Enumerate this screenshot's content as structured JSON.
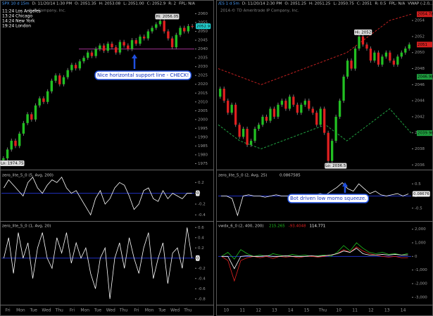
{
  "left": {
    "header": [
      "SPX 10 d 15m",
      "D: 11/20/14 1:30 PM",
      "O: 2051.35",
      "H: 2053.08",
      "L: 2051.00",
      "C: 2052.9",
      "R: 2",
      "FPL: N/A"
    ],
    "watermark": "© IP Company, Inc.",
    "clocks": [
      {
        "time": "11:24",
        "city": "Los Angeles"
      },
      {
        "time": "13:24",
        "city": "Chicago"
      },
      {
        "time": "14:24",
        "city": "New York"
      },
      {
        "time": "19:24",
        "city": "London"
      }
    ],
    "price": {
      "ylim": [
        1972,
        2063
      ],
      "yticks": [
        1975,
        1980,
        1985,
        1990,
        1995,
        2000,
        2005,
        2010,
        2015,
        2020,
        2025,
        2030,
        2035,
        2040,
        2045,
        2050,
        2055,
        2060
      ],
      "values": [
        1978,
        1983,
        1988,
        1985,
        1992,
        1998,
        2003,
        2000,
        2008,
        2012,
        2010,
        2016,
        2022,
        2025,
        2020,
        2024,
        2028,
        2031,
        2029,
        2033,
        2035,
        2038,
        2036,
        2040,
        2042,
        2039,
        2043,
        2041,
        2038,
        2044,
        2042,
        2040,
        2045,
        2043,
        2047,
        2046,
        2050,
        2052,
        2054,
        2056,
        2050,
        2046,
        2041,
        2048,
        2052,
        2050,
        2053,
        2052.9
      ],
      "last_label": "2052.9",
      "high_label": "Hi: 2056.05",
      "low_label": "Lo: 1974.75",
      "support": 2040
    },
    "annotation": "Nice horizontal support line - CHECK!",
    "osc1": {
      "title": "zero_lite_5_0 (5, Avg, 200)",
      "ylim": [
        -0.5,
        0.4
      ],
      "yticks": [
        0.2,
        0,
        -0.2,
        -0.4
      ],
      "values": [
        0.1,
        0.25,
        0.15,
        0.05,
        -0.05,
        0.2,
        0.3,
        0.1,
        0,
        0.15,
        0.25,
        0.2,
        0.3,
        0.1,
        0,
        0.05,
        -0.1,
        -0.25,
        -0.4,
        -0.1,
        0.05,
        -0.2,
        -0.1,
        0.1,
        0.2,
        0.15,
        -0.05,
        -0.3,
        -0.2,
        0.05,
        0.1,
        -0.1,
        -0.15,
        0.05,
        -0.1,
        0,
        -0.05,
        -0.1,
        0,
        0
      ],
      "last_label": "0"
    },
    "osc2": {
      "title": "zero_lite_5_0 (1, Avg, 20)",
      "ylim": [
        -0.9,
        0.7
      ],
      "yticks": [
        0.6,
        0.4,
        0.2,
        0,
        -0.2,
        -0.4,
        -0.6,
        -0.8
      ],
      "values": [
        0,
        0.4,
        -0.3,
        0.5,
        0,
        0.3,
        -0.4,
        0.2,
        0.5,
        0,
        -0.2,
        0.4,
        0.1,
        0.5,
        -0.1,
        0.3,
        0,
        0.2,
        -0.3,
        -0.6,
        0,
        0.2,
        -0.8,
        0,
        0.3,
        -0.2,
        0.4,
        0,
        -0.3,
        0.2,
        0.5,
        -0.4,
        0,
        0.3,
        -0.5,
        0.1,
        0.2,
        -0.2,
        0.6,
        0
      ],
      "last_label": "0"
    },
    "xlabels": [
      "Fri",
      "Mon",
      "Tue",
      "Wed",
      "Thu",
      "Fri",
      "Mon",
      "Tue",
      "Wed",
      "Thu",
      "Fri",
      "Mon",
      "Tue",
      "Wed",
      "Thu"
    ]
  },
  "right": {
    "header": [
      "/ES 1 d 5m",
      "D: 11/20/14 2:30 PM",
      "O: 2051.25",
      "H: 2051.25",
      "L: 2050.75",
      "C: 2051",
      "R: 0.5",
      "FPL: N/A",
      "VWAP (-2.0,..."
    ],
    "watermark": "2014-© TD Ameritrade IP Company, Inc.",
    "price": {
      "ylim": [
        2035.5,
        2055.5
      ],
      "yticks": [
        2036,
        2038,
        2040,
        2042,
        2044,
        2046,
        2048,
        2050,
        2052,
        2054
      ],
      "values": [
        2045.5,
        2044,
        2042.5,
        2043.5,
        2041,
        2039.5,
        2040.5,
        2038.5,
        2039,
        2040.5,
        2041,
        2042,
        2041.5,
        2043,
        2042,
        2043.5,
        2044,
        2043,
        2044.5,
        2043.5,
        2042.5,
        2043.5,
        2044,
        2043,
        2042.5,
        2041,
        2043,
        2040,
        2036.5,
        2039,
        2042,
        2044,
        2047,
        2049,
        2048,
        2050.5,
        2052,
        2051,
        2050.5,
        2049,
        2050,
        2048.5,
        2049.5,
        2050,
        2049,
        2048.5,
        2049.5,
        2050,
        2050.5,
        2051
      ],
      "upper_band": [
        2048,
        2047,
        2046,
        2047,
        2048,
        2049,
        2050,
        2052,
        2054,
        2054.78
      ],
      "lower_band": [
        2041,
        2039,
        2038,
        2039,
        2040,
        2041,
        2039,
        2041,
        2043,
        2039.96
      ],
      "markers": [
        {
          "label": "2054.78",
          "value": 2054.78,
          "color": "#d42020"
        },
        {
          "label": "2051",
          "value": 2051,
          "color": "#d42020"
        },
        {
          "label": "2046.98",
          "value": 2046.98,
          "color": "#20a040"
        },
        {
          "label": "2039.96",
          "value": 2039.96,
          "color": "#20a040"
        }
      ],
      "high_label": "Hi: 2052",
      "low_label": "Lo: 2036.5"
    },
    "osc1": {
      "title": "zero_lite_5_0 (2, Avg, 25)",
      "ylim": [
        -1,
        1
      ],
      "yticks": [
        0.5,
        0,
        -0.5
      ],
      "values": [
        0,
        0,
        -0.1,
        -0.8,
        0,
        0.05,
        0,
        0,
        -0.05,
        0,
        0.05,
        0,
        0,
        0.05,
        0,
        0,
        0,
        0.05,
        0.1,
        0.05,
        0.2,
        0.35,
        0.55,
        0.3,
        0.2,
        0.5,
        0.3,
        0.1,
        0.2,
        0.05,
        0,
        0.05,
        0.1,
        0,
        0.0867585
      ],
      "last_label": "0.08676",
      "value_label": "0.0867585"
    },
    "annotation": "Bot driven low momo squeeze.",
    "osc2": {
      "title": "vwdx_6_0 (2, 400, 200)",
      "ylim": [
        -3500,
        2500
      ],
      "yticks": [
        {
          "value": 2000,
          "label": "2,000"
        },
        {
          "value": 1000,
          "label": "1,000"
        },
        0,
        {
          "value": -1000,
          "label": "-1,000"
        },
        {
          "value": -2000,
          "label": "-2,000"
        },
        {
          "value": -3000,
          "label": "-3,000"
        }
      ],
      "series": [
        {
          "name": "215.265",
          "color": "#20c020",
          "values": [
            0,
            300,
            -200,
            500,
            200,
            0,
            100,
            0,
            200,
            100,
            0,
            150,
            50,
            100,
            0,
            50,
            100,
            0,
            300,
            800,
            400,
            1000,
            600,
            300,
            200,
            300,
            150,
            200,
            100,
            215.265
          ]
        },
        {
          "name": "-93.4048",
          "color": "#e02020",
          "values": [
            0,
            -300,
            -1800,
            -300,
            -100,
            0,
            -100,
            0,
            -150,
            0,
            -50,
            0,
            -100,
            0,
            0,
            -50,
            0,
            100,
            200,
            500,
            300,
            700,
            400,
            200,
            100,
            0,
            -50,
            0,
            -100,
            -93.4048
          ]
        },
        {
          "name": "114.771",
          "color": "#ffffff",
          "values": [
            0,
            0,
            -900,
            0,
            50,
            0,
            0,
            50,
            0,
            0,
            50,
            0,
            0,
            0,
            50,
            0,
            50,
            100,
            200,
            400,
            300,
            600,
            200,
            100,
            100,
            150,
            100,
            150,
            100,
            114.771
          ]
        }
      ]
    },
    "xlabels": [
      "10",
      "11",
      "12",
      "13",
      "14",
      "15",
      "Thu",
      "10",
      "11",
      "12",
      "13",
      "14"
    ]
  }
}
